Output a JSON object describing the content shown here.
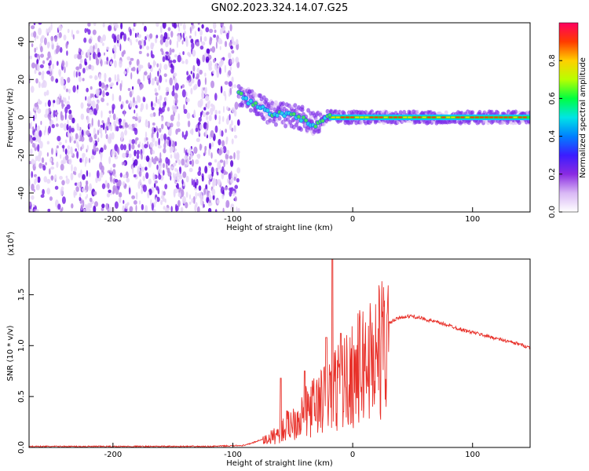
{
  "title": "GN02.2023.324.14.07.G25",
  "colors": {
    "signal": "#e8312a",
    "scatter": "#6a00e0",
    "axis": "#000000",
    "colormap": [
      "#ffffff",
      "#d9b8f5",
      "#8a2be2",
      "#3b1cff",
      "#0080ff",
      "#00e5e5",
      "#00ff40",
      "#b8ff00",
      "#ffd000",
      "#ff3b00",
      "#ff0060"
    ]
  },
  "chart_data": [
    {
      "type": "heatmap",
      "name": "spectrogram",
      "xlabel": "Height of straight line (km)",
      "ylabel": "Frequency (Hz)",
      "xlim": [
        -270,
        148
      ],
      "ylim": [
        -50,
        50
      ],
      "xticks": [
        -200,
        -100,
        0,
        100
      ],
      "yticks": [
        40,
        20,
        0,
        -20,
        -40
      ],
      "noise_region": [
        -270,
        -95
      ],
      "track": {
        "x": [
          -95,
          -90,
          -85,
          -80,
          -75,
          -70,
          -65,
          -60,
          -55,
          -50,
          -45,
          -40,
          -35,
          -30,
          -25,
          -20,
          -15,
          -10,
          -5,
          0,
          20,
          50,
          80,
          110,
          148
        ],
        "y": [
          12,
          10,
          8,
          7,
          5,
          3,
          2,
          2,
          1,
          1,
          0,
          -1,
          -3,
          -4,
          -1,
          1,
          1,
          0,
          0,
          0,
          0,
          0,
          0,
          0,
          0
        ]
      },
      "colorbar": {
        "label": "Normalized spectral amplitude",
        "range": [
          0,
          1
        ],
        "ticks": [
          "0.0",
          "0.2",
          "0.4",
          "0.6",
          "0.8"
        ]
      }
    },
    {
      "type": "line",
      "name": "snr",
      "xlabel": "Height of straight line (km)",
      "ylabel": "SNR (10 * v/v)",
      "scale_label": "(x10",
      "scale_exp": "4",
      "scale_close": ")",
      "xlim": [
        -270,
        148
      ],
      "ylim": [
        0,
        1.85
      ],
      "xticks": [
        -200,
        -100,
        0,
        100
      ],
      "yticks": [
        "0.0",
        "0.5",
        "1.0",
        "1.5"
      ],
      "envelope": {
        "x": [
          -270,
          -200,
          -120,
          -90,
          -80,
          -70,
          -60,
          -55,
          -50,
          -45,
          -40,
          -35,
          -30,
          -25,
          -20,
          -15,
          -10,
          -5,
          0,
          10,
          20,
          30,
          40,
          50,
          60,
          70,
          80,
          90,
          100,
          110,
          120,
          130,
          140,
          148
        ],
        "y": [
          0.01,
          0.01,
          0.01,
          0.02,
          0.06,
          0.1,
          0.18,
          0.25,
          0.3,
          0.35,
          0.4,
          0.45,
          0.5,
          0.55,
          0.62,
          0.68,
          0.73,
          0.78,
          0.85,
          0.97,
          1.1,
          1.22,
          1.28,
          1.29,
          1.26,
          1.23,
          1.2,
          1.16,
          1.13,
          1.1,
          1.07,
          1.04,
          1.01,
          0.98
        ]
      },
      "peaks": [
        {
          "x": -60,
          "y": 0.68
        },
        {
          "x": -40,
          "y": 0.75
        },
        {
          "x": -22,
          "y": 1.08
        },
        {
          "x": -17,
          "y": 1.85
        },
        {
          "x": -10,
          "y": 1.12
        }
      ]
    }
  ]
}
